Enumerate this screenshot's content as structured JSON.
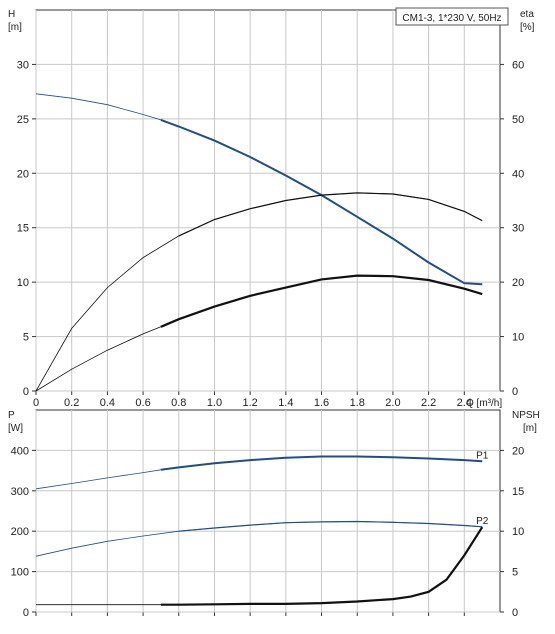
{
  "chart_data": [
    {
      "type": "line",
      "title": "CM1-3, 1*230 V, 50Hz",
      "xlabel": "Q [m³/h]",
      "ylabel_left": "H\n[m]",
      "ylabel_right": "eta\n[%]",
      "xlim": [
        0,
        2.6
      ],
      "ylim_left": [
        0,
        35
      ],
      "ylim_right": [
        0,
        70
      ],
      "grid": true,
      "x_ticks": [
        "0",
        "0.2",
        "0.4",
        "0.6",
        "0.8",
        "1.0",
        "1.2",
        "1.4",
        "1.6",
        "1.8",
        "2.0",
        "2.2",
        "2.4"
      ],
      "y_ticks_left": [
        "0",
        "5",
        "10",
        "15",
        "20",
        "25",
        "30"
      ],
      "y_ticks_right": [
        "0",
        "10",
        "20",
        "30",
        "40",
        "50",
        "60"
      ],
      "series": [
        {
          "axis": "left",
          "color": "#1f4e8c",
          "x": [
            0,
            0.2,
            0.4,
            0.6,
            0.7,
            0.8,
            1.0,
            1.2,
            1.4,
            1.6,
            1.8,
            2.0,
            2.2,
            2.4,
            2.5
          ],
          "y": [
            27.3,
            26.9,
            26.3,
            25.4,
            24.9,
            24.3,
            23.0,
            21.5,
            19.8,
            18.0,
            16.0,
            14.0,
            11.8,
            9.9,
            9.8
          ]
        },
        {
          "axis": "right",
          "color": "#111111",
          "x": [
            0,
            0.2,
            0.4,
            0.6,
            0.8,
            1.0,
            1.2,
            1.4,
            1.6,
            1.8,
            2.0,
            2.2,
            2.4,
            2.5
          ],
          "y": [
            0,
            11.5,
            19.0,
            24.5,
            28.5,
            31.5,
            33.5,
            35.0,
            36.0,
            36.4,
            36.2,
            35.2,
            33.0,
            31.3
          ]
        },
        {
          "axis": "right",
          "color": "#111111",
          "x": [
            0,
            0.2,
            0.4,
            0.6,
            0.7,
            0.8,
            1.0,
            1.2,
            1.4,
            1.6,
            1.8,
            2.0,
            2.2,
            2.4,
            2.5
          ],
          "y": [
            0,
            4.0,
            7.5,
            10.5,
            11.8,
            13.2,
            15.5,
            17.5,
            19.0,
            20.5,
            21.2,
            21.1,
            20.4,
            18.8,
            17.8
          ]
        }
      ]
    },
    {
      "type": "line",
      "ylabel_left": "P\n[W]",
      "ylabel_right": "NPSH\n[m]",
      "xlim": [
        0,
        2.6
      ],
      "ylim_left": [
        0,
        500
      ],
      "ylim_right": [
        0,
        25
      ],
      "grid": true,
      "y_ticks_left": [
        "0",
        "100",
        "200",
        "300",
        "400"
      ],
      "y_ticks_right": [
        "0",
        "5",
        "10",
        "15",
        "20"
      ],
      "series": [
        {
          "name": "P1",
          "axis": "left",
          "color": "#1f4e8c",
          "x": [
            0,
            0.2,
            0.4,
            0.6,
            0.7,
            0.8,
            1.0,
            1.2,
            1.4,
            1.6,
            1.8,
            2.0,
            2.2,
            2.4,
            2.5
          ],
          "y": [
            305,
            318,
            332,
            345,
            352,
            358,
            368,
            376,
            382,
            385,
            385,
            383,
            380,
            376,
            373
          ]
        },
        {
          "name": "P2",
          "axis": "left",
          "color": "#1f4e8c",
          "x": [
            0,
            0.2,
            0.4,
            0.6,
            0.8,
            1.0,
            1.2,
            1.4,
            1.6,
            1.8,
            2.0,
            2.2,
            2.4,
            2.5
          ],
          "y": [
            138,
            158,
            175,
            188,
            200,
            208,
            215,
            221,
            223,
            224,
            222,
            219,
            214,
            211
          ]
        },
        {
          "axis": "right",
          "color": "#111111",
          "x": [
            0,
            0.2,
            0.4,
            0.6,
            0.7,
            0.8,
            1.0,
            1.2,
            1.4,
            1.6,
            1.8,
            2.0,
            2.1,
            2.2,
            2.3,
            2.4,
            2.5
          ],
          "y": [
            0.9,
            0.9,
            0.9,
            0.9,
            0.9,
            0.9,
            0.95,
            1.0,
            1.0,
            1.1,
            1.3,
            1.6,
            1.9,
            2.5,
            4.0,
            7.0,
            10.5
          ]
        }
      ]
    }
  ]
}
